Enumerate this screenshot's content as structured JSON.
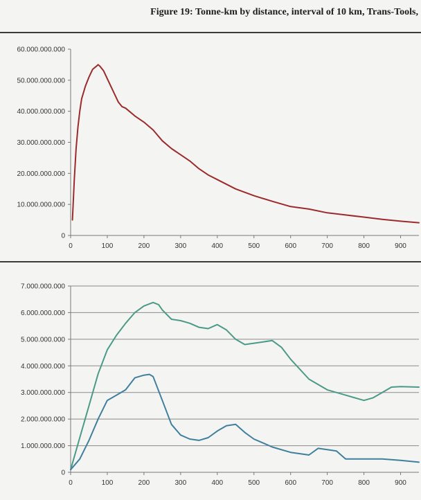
{
  "figure_title": "Figure 19: Tonne-km by distance, interval of 10 km, Trans-Tools,",
  "colors": {
    "top_series": "#9b2b2b",
    "series_upper": "#4a9a87",
    "series_lower": "#3f7f9e",
    "gridline": "#8a8a8a",
    "axis": "#777777"
  },
  "chart_data": [
    {
      "type": "line",
      "title": "",
      "xlabel": "",
      "ylabel": "",
      "xlim": [
        0,
        950
      ],
      "ylim": [
        0,
        60000000000
      ],
      "grid": false,
      "x_ticks": [
        0,
        100,
        200,
        300,
        400,
        500,
        600,
        700,
        800,
        900
      ],
      "x_tick_labels": [
        "0",
        "100",
        "200",
        "300",
        "400",
        "500",
        "600",
        "700",
        "800",
        "900"
      ],
      "y_ticks": [
        0,
        10000000000,
        20000000000,
        30000000000,
        40000000000,
        50000000000,
        60000000000
      ],
      "y_tick_labels": [
        "0",
        "10.000.000.000",
        "20.000.000.000",
        "30.000.000.000",
        "40.000.000.000",
        "50.000.000.000",
        "60.000.000.000"
      ],
      "series": [
        {
          "x": [
            5,
            10,
            15,
            20,
            25,
            30,
            40,
            50,
            60,
            70,
            75,
            80,
            90,
            100,
            110,
            120,
            130,
            140,
            150,
            175,
            200,
            225,
            250,
            275,
            300,
            325,
            350,
            375,
            400,
            450,
            500,
            550,
            600,
            650,
            700,
            750,
            800,
            850,
            900,
            950
          ],
          "values": [
            5000000000,
            18000000000,
            28000000000,
            35000000000,
            40000000000,
            44000000000,
            48000000000,
            51000000000,
            53500000000,
            54500000000,
            55000000000,
            54500000000,
            53000000000,
            50500000000,
            48000000000,
            45500000000,
            43000000000,
            41500000000,
            41000000000,
            38500000000,
            36500000000,
            34000000000,
            30500000000,
            28000000000,
            26000000000,
            24000000000,
            21500000000,
            19500000000,
            18000000000,
            15000000000,
            12800000000,
            11000000000,
            9300000000,
            8500000000,
            7300000000,
            6600000000,
            5900000000,
            5200000000,
            4600000000,
            4100000000
          ]
        }
      ]
    },
    {
      "type": "line",
      "title": "",
      "xlabel": "",
      "ylabel": "",
      "xlim": [
        0,
        950
      ],
      "ylim": [
        0,
        7000000000
      ],
      "grid": true,
      "x_ticks": [
        0,
        100,
        200,
        300,
        400,
        500,
        600,
        700,
        800,
        900
      ],
      "x_tick_labels": [
        "0",
        "100",
        "200",
        "300",
        "400",
        "500",
        "600",
        "700",
        "800",
        "900"
      ],
      "y_ticks": [
        0,
        1000000000,
        2000000000,
        3000000000,
        4000000000,
        5000000000,
        6000000000,
        7000000000
      ],
      "y_tick_labels": [
        "0",
        "1.000.000.000",
        "2.000.000.000",
        "3.000.000.000",
        "4.000.000.000",
        "5.000.000.000",
        "6.000.000.000",
        "7.000.000.000"
      ],
      "series": [
        {
          "x": [
            0,
            25,
            50,
            75,
            100,
            125,
            150,
            175,
            200,
            225,
            240,
            250,
            275,
            300,
            325,
            350,
            375,
            400,
            425,
            450,
            475,
            500,
            525,
            550,
            575,
            600,
            650,
            700,
            750,
            800,
            825,
            850,
            875,
            900,
            950
          ],
          "values": [
            100000000,
            1300000000,
            2500000000,
            3700000000,
            4600000000,
            5150000000,
            5600000000,
            6000000000,
            6250000000,
            6380000000,
            6300000000,
            6100000000,
            5750000000,
            5700000000,
            5600000000,
            5450000000,
            5400000000,
            5550000000,
            5350000000,
            5000000000,
            4800000000,
            4850000000,
            4900000000,
            4950000000,
            4700000000,
            4250000000,
            3500000000,
            3100000000,
            2900000000,
            2700000000,
            2800000000,
            3000000000,
            3200000000,
            3220000000,
            3200000000
          ]
        },
        {
          "x": [
            0,
            25,
            50,
            75,
            100,
            125,
            150,
            175,
            200,
            215,
            225,
            250,
            275,
            300,
            325,
            350,
            375,
            400,
            425,
            450,
            475,
            500,
            525,
            550,
            600,
            650,
            675,
            700,
            725,
            750,
            800,
            850,
            900,
            950
          ],
          "values": [
            100000000,
            500000000,
            1200000000,
            2000000000,
            2700000000,
            2900000000,
            3100000000,
            3550000000,
            3650000000,
            3680000000,
            3600000000,
            2700000000,
            1800000000,
            1400000000,
            1250000000,
            1200000000,
            1300000000,
            1550000000,
            1750000000,
            1800000000,
            1500000000,
            1250000000,
            1100000000,
            950000000,
            750000000,
            650000000,
            900000000,
            850000000,
            800000000,
            500000000,
            500000000,
            500000000,
            450000000,
            380000000
          ]
        }
      ]
    }
  ]
}
